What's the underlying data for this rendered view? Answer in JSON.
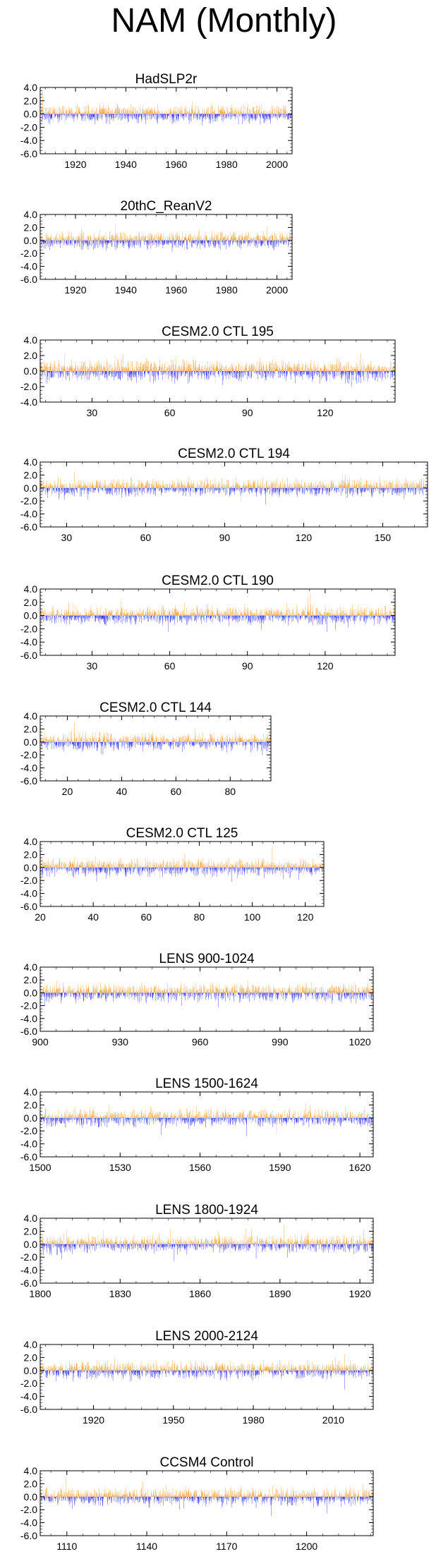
{
  "page_title": "NAM (Monthly)",
  "colors": {
    "positive": "#ff8c00",
    "negative": "#0000ff",
    "neutral": "#b0b0b0"
  },
  "chart_data": [
    {
      "type": "bar",
      "title": "HadSLP2r",
      "ylim": [
        -6.0,
        4.0
      ],
      "y_ticks": [
        "4.0",
        "2.0",
        "0.0",
        "-2.0",
        "-4.0",
        "-6.0"
      ],
      "xlim": [
        1906,
        2006
      ],
      "x_ticks": [
        1920,
        1940,
        1960,
        1980,
        2000
      ]
    },
    {
      "type": "bar",
      "title": "20thC_ReanV2",
      "ylim": [
        -6.0,
        4.0
      ],
      "y_ticks": [
        "4.0",
        "2.0",
        "0.0",
        "-2.0",
        "-4.0",
        "-6.0"
      ],
      "xlim": [
        1906,
        2006
      ],
      "x_ticks": [
        1920,
        1940,
        1960,
        1980,
        2000
      ]
    },
    {
      "type": "bar",
      "title": "CESM2.0 CTL 195",
      "ylim": [
        -4.0,
        4.0
      ],
      "y_ticks": [
        "4.0",
        "2.0",
        "0.0",
        "-2.0",
        "-4.0"
      ],
      "xlim": [
        10,
        147
      ],
      "x_ticks": [
        30,
        60,
        90,
        120
      ]
    },
    {
      "type": "bar",
      "title": "CESM2.0 CTL 194",
      "ylim": [
        -6.0,
        4.0
      ],
      "y_ticks": [
        "4.0",
        "2.0",
        "0.0",
        "-2.0",
        "-4.0",
        "-6.0"
      ],
      "xlim": [
        20,
        167
      ],
      "x_ticks": [
        30,
        60,
        90,
        120,
        150
      ]
    },
    {
      "type": "bar",
      "title": "CESM2.0 CTL 190",
      "ylim": [
        -6.0,
        4.0
      ],
      "y_ticks": [
        "4.0",
        "2.0",
        "0.0",
        "-2.0",
        "-4.0",
        "-6.0"
      ],
      "xlim": [
        10,
        147
      ],
      "x_ticks": [
        30,
        60,
        90,
        120
      ]
    },
    {
      "type": "bar",
      "title": "CESM2.0 CTL 144",
      "ylim": [
        -6.0,
        4.0
      ],
      "y_ticks": [
        "4.0",
        "2.0",
        "0.0",
        "-2.0",
        "-4.0",
        "-6.0"
      ],
      "xlim": [
        10,
        95
      ],
      "x_ticks": [
        20,
        40,
        60,
        80
      ]
    },
    {
      "type": "bar",
      "title": "CESM2.0 CTL 125",
      "ylim": [
        -6.0,
        4.0
      ],
      "y_ticks": [
        "4.0",
        "2.0",
        "0.0",
        "-2.0",
        "-4.0",
        "-6.0"
      ],
      "xlim": [
        20,
        127
      ],
      "x_ticks": [
        20,
        40,
        60,
        80,
        100,
        120
      ]
    },
    {
      "type": "bar",
      "title": "LENS 900-1024",
      "ylim": [
        -6.0,
        4.0
      ],
      "y_ticks": [
        "4.0",
        "2.0",
        "0.0",
        "-2.0",
        "-4.0",
        "-6.0"
      ],
      "xlim": [
        900,
        1025
      ],
      "x_ticks": [
        900,
        930,
        960,
        990,
        1020
      ]
    },
    {
      "type": "bar",
      "title": "LENS 1500-1624",
      "ylim": [
        -6.0,
        4.0
      ],
      "y_ticks": [
        "4.0",
        "2.0",
        "0.0",
        "-2.0",
        "-4.0",
        "-6.0"
      ],
      "xlim": [
        1500,
        1625
      ],
      "x_ticks": [
        1500,
        1530,
        1560,
        1590,
        1620
      ]
    },
    {
      "type": "bar",
      "title": "LENS 1800-1924",
      "ylim": [
        -6.0,
        4.0
      ],
      "y_ticks": [
        "4.0",
        "2.0",
        "0.0",
        "-2.0",
        "-4.0",
        "-6.0"
      ],
      "xlim": [
        1800,
        1925
      ],
      "x_ticks": [
        1800,
        1830,
        1860,
        1890,
        1920
      ]
    },
    {
      "type": "bar",
      "title": "LENS 2000-2124",
      "ylim": [
        -6.0,
        4.0
      ],
      "y_ticks": [
        "4.0",
        "2.0",
        "0.0",
        "-2.0",
        "-4.0",
        "-6.0"
      ],
      "xlim": [
        1900,
        2025
      ],
      "x_ticks": [
        1920,
        1950,
        1980,
        2010
      ]
    },
    {
      "type": "bar",
      "title": "CCSM4 Control",
      "ylim": [
        -6.0,
        4.0
      ],
      "y_ticks": [
        "4.0",
        "2.0",
        "0.0",
        "-2.0",
        "-4.0",
        "-6.0"
      ],
      "xlim": [
        1100,
        1225
      ],
      "x_ticks": [
        1110,
        1140,
        1170,
        1200
      ]
    }
  ]
}
